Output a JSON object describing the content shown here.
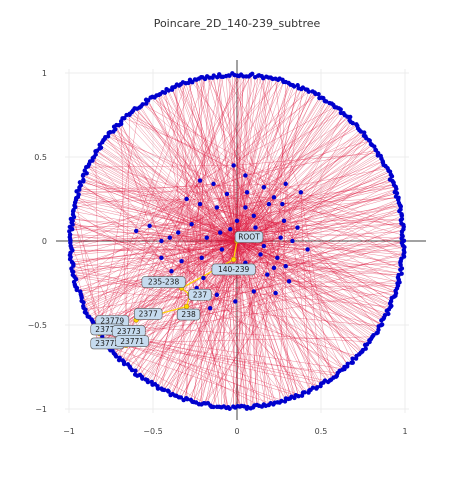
{
  "chart_data": {
    "type": "scatter",
    "title": "Poincare_2D_140-239_subtree",
    "xlim": [
      -1,
      1
    ],
    "ylim": [
      -1,
      1
    ],
    "x_ticks": [
      "−1",
      "−0.5",
      "0",
      "0.5",
      "1"
    ],
    "y_ticks": [
      "−1",
      "−0.5",
      "0",
      "0.5",
      "1"
    ],
    "x_tick_values": [
      -1,
      -0.5,
      0,
      0.5,
      1
    ],
    "y_tick_values": [
      -1,
      -0.5,
      0,
      0.5,
      1
    ],
    "grid": true,
    "colors": {
      "edge": "#dc143c",
      "node": "#0000cd",
      "highlight": "#ffd700",
      "label_bg": "#c6dbef",
      "label_border": "#555555"
    },
    "series": [
      {
        "kind": "labeled_nodes",
        "points": [
          {
            "label": "ROOT",
            "x": 0.0,
            "y": 0.0
          },
          {
            "label": "140-239",
            "x": -0.02,
            "y": -0.11
          },
          {
            "label": "235-238",
            "x": -0.33,
            "y": -0.28
          },
          {
            "label": "237",
            "x": -0.28,
            "y": -0.32
          },
          {
            "label": "238",
            "x": -0.3,
            "y": -0.39
          },
          {
            "label": "2377",
            "x": -0.6,
            "y": -0.47
          },
          {
            "label": "23779",
            "x": -0.79,
            "y": -0.5
          },
          {
            "label": "23770",
            "x": -0.82,
            "y": -0.55
          },
          {
            "label": "23772",
            "x": -0.82,
            "y": -0.61
          },
          {
            "label": "23773",
            "x": -0.68,
            "y": -0.56
          },
          {
            "label": "23771",
            "x": -0.66,
            "y": -0.62
          }
        ]
      },
      {
        "kind": "interior_nodes",
        "points": [
          [
            -0.02,
            0.45
          ],
          [
            -0.22,
            0.36
          ],
          [
            -0.14,
            0.34
          ],
          [
            -0.06,
            0.28
          ],
          [
            0.05,
            0.39
          ],
          [
            0.1,
            0.15
          ],
          [
            0.19,
            0.22
          ],
          [
            0.28,
            0.12
          ],
          [
            0.36,
            0.08
          ],
          [
            0.22,
            0.26
          ],
          [
            0.05,
            0.2
          ],
          [
            -0.27,
            0.1
          ],
          [
            -0.35,
            0.05
          ],
          [
            -0.4,
            0.02
          ],
          [
            -0.18,
            0.02
          ],
          [
            -0.1,
            0.05
          ],
          [
            0.07,
            0.01
          ],
          [
            0.16,
            -0.03
          ],
          [
            0.26,
            0.02
          ],
          [
            0.33,
            0.0
          ],
          [
            0.24,
            -0.1
          ],
          [
            0.29,
            -0.15
          ],
          [
            0.31,
            -0.24
          ],
          [
            0.18,
            -0.2
          ],
          [
            0.1,
            -0.3
          ],
          [
            -0.01,
            -0.36
          ],
          [
            -0.12,
            -0.32
          ],
          [
            -0.2,
            -0.22
          ],
          [
            -0.33,
            -0.12
          ],
          [
            -0.39,
            -0.18
          ],
          [
            -0.45,
            -0.1
          ],
          [
            -0.21,
            -0.1
          ],
          [
            -0.07,
            -0.15
          ],
          [
            0.05,
            -0.13
          ],
          [
            -0.12,
            0.2
          ],
          [
            -0.22,
            0.22
          ],
          [
            -0.3,
            0.25
          ],
          [
            0.0,
            0.12
          ],
          [
            -0.04,
            0.07
          ],
          [
            0.11,
            0.08
          ],
          [
            0.14,
            -0.08
          ],
          [
            0.22,
            -0.16
          ],
          [
            0.38,
            0.29
          ],
          [
            0.42,
            -0.05
          ],
          [
            -0.52,
            0.09
          ],
          [
            -0.6,
            0.06
          ],
          [
            -0.24,
            -0.28
          ],
          [
            -0.16,
            -0.4
          ],
          [
            0.23,
            -0.31
          ],
          [
            0.06,
            0.29
          ],
          [
            0.29,
            0.34
          ],
          [
            0.27,
            0.22
          ],
          [
            -0.45,
            0.0
          ],
          [
            0.16,
            0.32
          ],
          [
            -0.09,
            -0.05
          ]
        ]
      },
      {
        "kind": "boundary_nodes",
        "count": 460,
        "radius": 1.0,
        "note": ""
      }
    ]
  }
}
